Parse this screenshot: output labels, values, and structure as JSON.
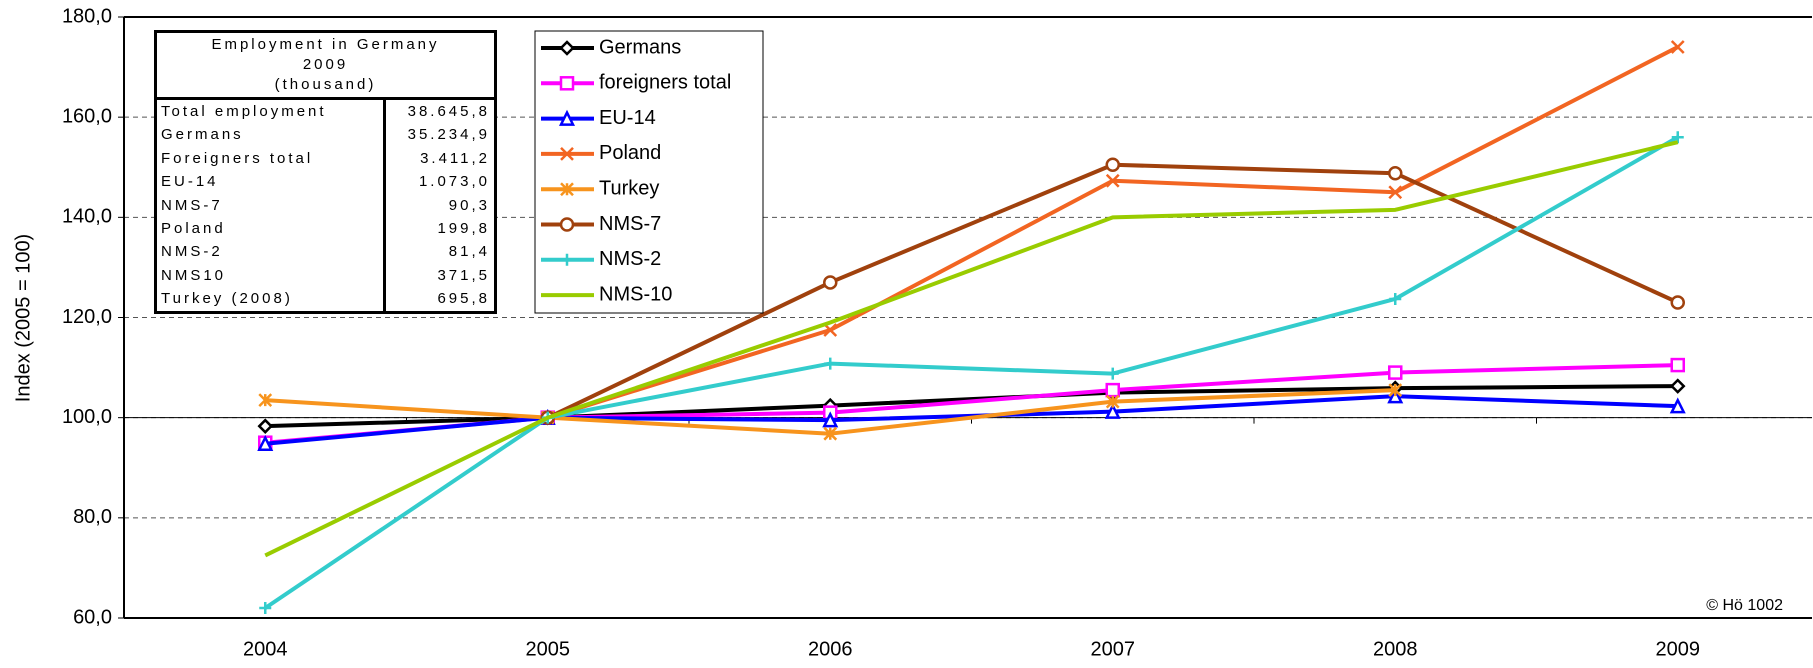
{
  "chart_data": {
    "type": "line",
    "y_label": "Index (2005 = 100)",
    "note": "© Hö 1002",
    "categories": [
      "2004",
      "2005",
      "2006",
      "2007",
      "2008",
      "2009"
    ],
    "ylim": [
      60,
      180
    ],
    "yticks": [
      {
        "value": 60,
        "label": "60,0"
      },
      {
        "value": 80,
        "label": "80,0"
      },
      {
        "value": 100,
        "label": "100,0"
      },
      {
        "value": 120,
        "label": "120,0"
      },
      {
        "value": 140,
        "label": "140,0"
      },
      {
        "value": 160,
        "label": "160,0"
      },
      {
        "value": 180,
        "label": "180,0"
      }
    ],
    "grid": true,
    "series": [
      {
        "name": "Germans",
        "color": "#000000",
        "marker": "diamond",
        "values": [
          98.3,
          100,
          102.4,
          105,
          105.9,
          106.3
        ]
      },
      {
        "name": "foreigners total",
        "color": "#ff00ff",
        "marker": "square",
        "values": [
          95,
          100,
          101,
          105.5,
          109,
          110.5
        ]
      },
      {
        "name": "EU-14",
        "color": "#0000ff",
        "marker": "triangle",
        "values": [
          94.8,
          100,
          99.5,
          101.2,
          104.3,
          102.3
        ]
      },
      {
        "name": "Poland",
        "color": "#f26522",
        "marker": "x",
        "values": [
          null,
          100,
          117.5,
          147.3,
          145,
          174
        ]
      },
      {
        "name": "Turkey",
        "color": "#f7941d",
        "marker": "asterisk",
        "values": [
          103.5,
          100,
          96.8,
          103.2,
          105.5,
          null
        ]
      },
      {
        "name": "NMS-7",
        "color": "#a0410d",
        "marker": "circle",
        "values": [
          null,
          100,
          127,
          150.5,
          148.8,
          123
        ]
      },
      {
        "name": "NMS-2",
        "color": "#33cccc",
        "marker": "plus",
        "values": [
          62,
          100,
          110.8,
          108.8,
          123.7,
          156
        ]
      },
      {
        "name": "NMS-10",
        "color": "#99cc00",
        "marker": "none",
        "values": [
          72.5,
          100,
          119,
          140,
          141.5,
          155
        ]
      }
    ]
  },
  "table": {
    "title": [
      "Employment in Germany",
      "2009",
      "(thousand)"
    ],
    "rows": [
      [
        "Total employment",
        "38.645,8"
      ],
      [
        "Germans",
        "35.234,9"
      ],
      [
        "Foreigners total",
        "3.411,2"
      ],
      [
        "EU-14",
        "1.073,0"
      ],
      [
        "NMS-7",
        "90,3"
      ],
      [
        "Poland",
        "199,8"
      ],
      [
        "NMS-2",
        "81,4"
      ],
      [
        "NMS10",
        "371,5"
      ],
      [
        "Turkey (2008)",
        "695,8"
      ]
    ]
  }
}
